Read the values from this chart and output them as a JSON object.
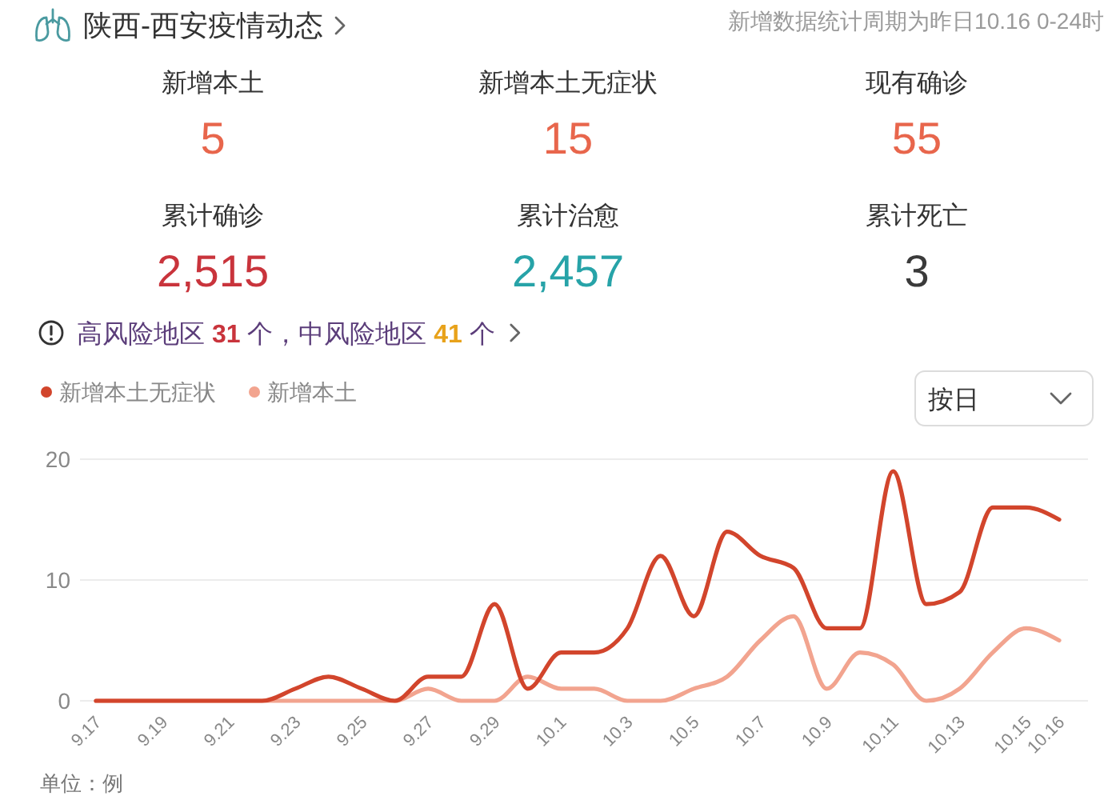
{
  "chart_data": [
    {
      "type": "other",
      "title": "陕西-西安疫情动态",
      "subtitle": "新增数据统计周期为昨日10.16 0-24时",
      "categories": [
        "新增本土",
        "新增本土无症状",
        "现有确诊",
        "累计确诊",
        "累计治愈",
        "累计死亡"
      ],
      "value_labels": [
        "5",
        "15",
        "55",
        "2,515",
        "2,457",
        "3"
      ],
      "colors": [
        "#e8664c",
        "#e8664c",
        "#e8664c",
        "#c9343c",
        "#27a3a8",
        "#3a3a3a"
      ],
      "annotations": [
        "高风险地区 31 个，中风险地区 41 个"
      ]
    },
    {
      "type": "line",
      "categories": [
        "9.17",
        null,
        "9.19",
        null,
        "9.21",
        null,
        "9.23",
        null,
        "9.25",
        null,
        "9.27",
        null,
        "9.29",
        null,
        "10.1",
        null,
        "10.3",
        null,
        "10.5",
        null,
        "10.7",
        null,
        "10.9",
        null,
        "10.11",
        null,
        "10.13",
        null,
        "10.15",
        "10.16"
      ],
      "series": [
        {
          "name": "新增本土无症状",
          "color": "#d2452c",
          "values": [
            0,
            0,
            0,
            0,
            0,
            0,
            1,
            2,
            1,
            0,
            2,
            2,
            8,
            1,
            4,
            4,
            6,
            12,
            7,
            14,
            12,
            11,
            6,
            6,
            19,
            8,
            9,
            16,
            16,
            15
          ]
        },
        {
          "name": "新增本土",
          "color": "#f2a48f",
          "values": [
            0,
            0,
            0,
            0,
            0,
            0,
            0,
            0,
            0,
            0,
            1,
            0,
            0,
            2,
            1,
            1,
            0,
            0,
            1,
            2,
            5,
            7,
            1,
            4,
            3,
            0,
            1,
            4,
            6,
            5
          ]
        }
      ],
      "ylim": [
        0,
        20
      ],
      "yticks": [
        0,
        10,
        20
      ],
      "grid": "y",
      "legend": "top left",
      "annotations": [
        "按日",
        "单位：例"
      ]
    }
  ]
}
